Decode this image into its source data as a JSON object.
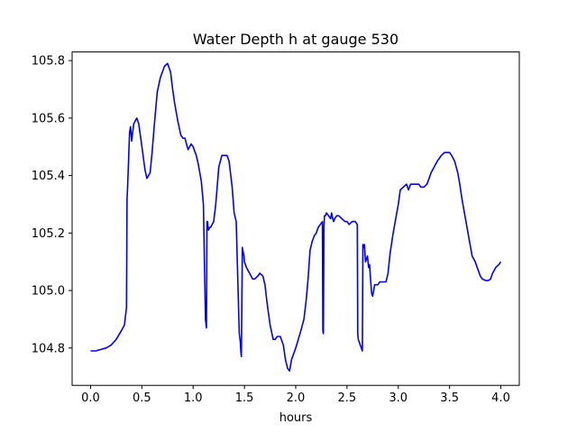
{
  "chart_data": {
    "type": "line",
    "title": "Water Depth h at gauge 530",
    "xlabel": "hours",
    "ylabel": "",
    "xlim": [
      -0.18,
      4.18
    ],
    "ylim": [
      104.67,
      105.83
    ],
    "xticks": [
      {
        "value": 0.0,
        "label": "0.0"
      },
      {
        "value": 0.5,
        "label": "0.5"
      },
      {
        "value": 1.0,
        "label": "1.0"
      },
      {
        "value": 1.5,
        "label": "1.5"
      },
      {
        "value": 2.0,
        "label": "2.0"
      },
      {
        "value": 2.5,
        "label": "2.5"
      },
      {
        "value": 3.0,
        "label": "3.0"
      },
      {
        "value": 3.5,
        "label": "3.5"
      },
      {
        "value": 4.0,
        "label": "4.0"
      }
    ],
    "yticks": [
      {
        "value": 104.8,
        "label": "104.8"
      },
      {
        "value": 105.0,
        "label": "105.0"
      },
      {
        "value": 105.2,
        "label": "105.2"
      },
      {
        "value": 105.4,
        "label": "105.4"
      },
      {
        "value": 105.6,
        "label": "105.6"
      },
      {
        "value": 105.8,
        "label": "105.8"
      }
    ],
    "grid": false,
    "series": [
      {
        "color": "#0000ff",
        "x": [
          0.0,
          0.05,
          0.1,
          0.15,
          0.2,
          0.25,
          0.3,
          0.33,
          0.35,
          0.355,
          0.36,
          0.37,
          0.38,
          0.39,
          0.4,
          0.42,
          0.45,
          0.47,
          0.5,
          0.53,
          0.55,
          0.58,
          0.6,
          0.62,
          0.65,
          0.68,
          0.7,
          0.72,
          0.75,
          0.78,
          0.8,
          0.82,
          0.85,
          0.88,
          0.9,
          0.92,
          0.95,
          0.98,
          1.0,
          1.03,
          1.05,
          1.08,
          1.1,
          1.12,
          1.13,
          1.135,
          1.14,
          1.145,
          1.15,
          1.16,
          1.17,
          1.2,
          1.22,
          1.25,
          1.28,
          1.3,
          1.33,
          1.35,
          1.38,
          1.4,
          1.42,
          1.45,
          1.46,
          1.465,
          1.47,
          1.48,
          1.49,
          1.495,
          1.5,
          1.52,
          1.55,
          1.58,
          1.6,
          1.63,
          1.65,
          1.68,
          1.7,
          1.72,
          1.75,
          1.78,
          1.8,
          1.82,
          1.85,
          1.88,
          1.9,
          1.92,
          1.94,
          1.96,
          2.0,
          2.05,
          2.08,
          2.1,
          2.12,
          2.14,
          2.16,
          2.18,
          2.2,
          2.22,
          2.24,
          2.26,
          2.265,
          2.27,
          2.275,
          2.28,
          2.285,
          2.29,
          2.3,
          2.32,
          2.34,
          2.35,
          2.36,
          2.37,
          2.38,
          2.4,
          2.42,
          2.45,
          2.48,
          2.5,
          2.52,
          2.55,
          2.58,
          2.6,
          2.605,
          2.61,
          2.62,
          2.64,
          2.65,
          2.655,
          2.66,
          2.67,
          2.68,
          2.7,
          2.71,
          2.72,
          2.73,
          2.74,
          2.75,
          2.77,
          2.8,
          2.82,
          2.85,
          2.88,
          2.9,
          2.92,
          2.95,
          2.98,
          3.0,
          3.02,
          3.05,
          3.08,
          3.1,
          3.12,
          3.15,
          3.18,
          3.2,
          3.22,
          3.25,
          3.28,
          3.3,
          3.32,
          3.35,
          3.38,
          3.4,
          3.42,
          3.45,
          3.48,
          3.5,
          3.52,
          3.55,
          3.58,
          3.6,
          3.62,
          3.65,
          3.68,
          3.7,
          3.72,
          3.75,
          3.78,
          3.8,
          3.82,
          3.85,
          3.88,
          3.9,
          3.92,
          3.95,
          3.98,
          4.0
        ],
        "y": [
          104.79,
          104.79,
          104.795,
          104.8,
          104.81,
          104.83,
          104.86,
          104.88,
          104.94,
          105.32,
          105.35,
          105.45,
          105.55,
          105.57,
          105.52,
          105.58,
          105.6,
          105.58,
          105.5,
          105.42,
          105.39,
          105.41,
          105.48,
          105.57,
          105.69,
          105.74,
          105.76,
          105.78,
          105.79,
          105.76,
          105.7,
          105.65,
          105.59,
          105.54,
          105.53,
          105.53,
          105.49,
          105.51,
          105.5,
          105.47,
          105.44,
          105.38,
          105.3,
          104.9,
          104.87,
          105.24,
          105.24,
          105.22,
          105.21,
          105.22,
          105.22,
          105.24,
          105.3,
          105.43,
          105.47,
          105.47,
          105.47,
          105.45,
          105.36,
          105.27,
          105.24,
          104.85,
          104.82,
          104.79,
          104.77,
          105.15,
          105.13,
          105.12,
          105.1,
          105.08,
          105.06,
          105.04,
          105.04,
          105.05,
          105.06,
          105.05,
          105.02,
          104.96,
          104.88,
          104.83,
          104.83,
          104.84,
          104.84,
          104.81,
          104.76,
          104.73,
          104.72,
          104.76,
          104.8,
          104.86,
          104.9,
          104.96,
          105.04,
          105.14,
          105.17,
          105.19,
          105.2,
          105.22,
          105.23,
          105.24,
          104.86,
          104.85,
          105.22,
          105.26,
          105.26,
          105.26,
          105.27,
          105.26,
          105.25,
          105.27,
          105.25,
          105.24,
          105.25,
          105.26,
          105.26,
          105.25,
          105.24,
          105.24,
          105.23,
          105.24,
          105.24,
          105.23,
          104.85,
          104.83,
          104.82,
          104.8,
          104.79,
          105.16,
          105.15,
          105.16,
          105.1,
          105.12,
          105.08,
          105.09,
          105.04,
          104.99,
          104.98,
          105.02,
          105.02,
          105.03,
          105.03,
          105.03,
          105.06,
          105.13,
          105.2,
          105.26,
          105.3,
          105.35,
          105.36,
          105.37,
          105.35,
          105.37,
          105.37,
          105.37,
          105.37,
          105.36,
          105.36,
          105.37,
          105.39,
          105.41,
          105.43,
          105.45,
          105.46,
          105.47,
          105.48,
          105.48,
          105.48,
          105.47,
          105.45,
          105.41,
          105.37,
          105.32,
          105.26,
          105.2,
          105.16,
          105.12,
          105.1,
          105.07,
          105.05,
          105.04,
          105.035,
          105.035,
          105.04,
          105.06,
          105.08,
          105.09,
          105.1
        ]
      }
    ]
  }
}
